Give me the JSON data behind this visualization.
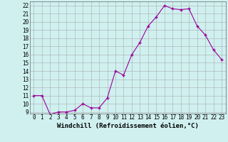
{
  "x": [
    0,
    1,
    2,
    3,
    4,
    5,
    6,
    7,
    8,
    9,
    10,
    11,
    12,
    13,
    14,
    15,
    16,
    17,
    18,
    19,
    20,
    21,
    22,
    23
  ],
  "y": [
    11,
    11,
    8.7,
    9.0,
    9.0,
    9.2,
    10.0,
    9.5,
    9.5,
    10.7,
    14.0,
    13.5,
    16.0,
    17.5,
    19.5,
    20.6,
    22.0,
    21.6,
    21.5,
    21.6,
    19.5,
    18.4,
    16.6,
    15.4
  ],
  "line_color": "#990099",
  "marker": "+",
  "marker_size": 3.5,
  "background_color": "#d0f0f0",
  "grid_color": "#aaaaaa",
  "xlabel": "Windchill (Refroidissement éolien,°C)",
  "xlabel_fontsize": 6.5,
  "tick_fontsize": 5.5,
  "ylim": [
    8.8,
    22.5
  ],
  "xlim": [
    -0.5,
    23.5
  ],
  "yticks": [
    9,
    10,
    11,
    12,
    13,
    14,
    15,
    16,
    17,
    18,
    19,
    20,
    21,
    22
  ],
  "xticks": [
    0,
    1,
    2,
    3,
    4,
    5,
    6,
    7,
    8,
    9,
    10,
    11,
    12,
    13,
    14,
    15,
    16,
    17,
    18,
    19,
    20,
    21,
    22,
    23
  ]
}
